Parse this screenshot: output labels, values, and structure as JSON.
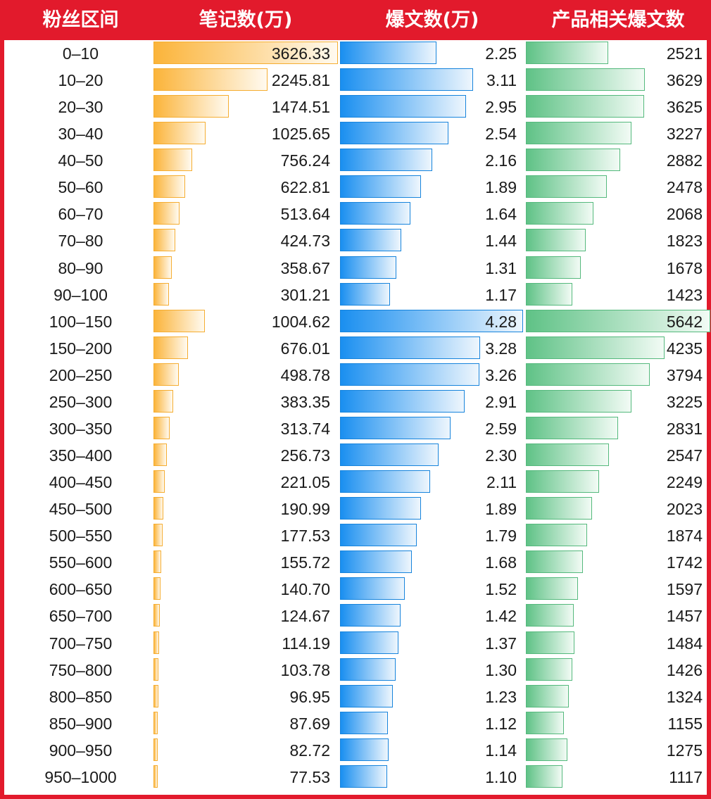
{
  "chart_data": {
    "type": "table",
    "columns": [
      "粉丝区间",
      "笔记数(万)",
      "爆文数(万)",
      "产品相关爆文数"
    ],
    "categories": [
      "0–10",
      "10–20",
      "20–30",
      "30–40",
      "40–50",
      "50–60",
      "60–70",
      "70–80",
      "80–90",
      "90–100",
      "100–150",
      "150–200",
      "200–250",
      "250–300",
      "300–350",
      "350–400",
      "400–450",
      "450–500",
      "500–550",
      "550–600",
      "600–650",
      "650–700",
      "700–750",
      "750–800",
      "800–850",
      "850–900",
      "900–950",
      "950–1000"
    ],
    "series": [
      {
        "values": [
          3626.33,
          2245.81,
          1474.51,
          1025.65,
          756.24,
          622.81,
          513.64,
          424.73,
          358.67,
          301.21,
          1004.62,
          676.01,
          498.78,
          383.35,
          313.74,
          256.73,
          221.05,
          190.99,
          177.53,
          155.72,
          140.7,
          124.67,
          114.19,
          103.78,
          96.95,
          87.69,
          82.72,
          77.53
        ]
      },
      {
        "values": [
          2.25,
          3.11,
          2.95,
          2.54,
          2.16,
          1.89,
          1.64,
          1.44,
          1.31,
          1.17,
          4.28,
          3.28,
          3.26,
          2.91,
          2.59,
          2.3,
          2.11,
          1.89,
          1.79,
          1.68,
          1.52,
          1.42,
          1.37,
          1.3,
          1.23,
          1.12,
          1.14,
          1.1
        ]
      },
      {
        "values": [
          2521,
          3629,
          3625,
          3227,
          2882,
          2478,
          2068,
          1823,
          1678,
          1423,
          5642,
          4235,
          3794,
          3225,
          2831,
          2547,
          2249,
          2023,
          1874,
          1742,
          1597,
          1457,
          1484,
          1426,
          1324,
          1155,
          1275,
          1117
        ]
      }
    ],
    "display": [
      [
        "3626.33",
        "2245.81",
        "1474.51",
        "1025.65",
        "756.24",
        "622.81",
        "513.64",
        "424.73",
        "358.67",
        "301.21",
        "1004.62",
        "676.01",
        "498.78",
        "383.35",
        "313.74",
        "256.73",
        "221.05",
        "190.99",
        "177.53",
        "155.72",
        "140.70",
        "124.67",
        "114.19",
        "103.78",
        "96.95",
        "87.69",
        "82.72",
        "77.53"
      ],
      [
        "2.25",
        "3.11",
        "2.95",
        "2.54",
        "2.16",
        "1.89",
        "1.64",
        "1.44",
        "1.31",
        "1.17",
        "4.28",
        "3.28",
        "3.26",
        "2.91",
        "2.59",
        "2.30",
        "2.11",
        "1.89",
        "1.79",
        "1.68",
        "1.52",
        "1.42",
        "1.37",
        "1.30",
        "1.23",
        "1.12",
        "1.14",
        "1.10"
      ],
      [
        "2521",
        "3629",
        "3625",
        "3227",
        "2882",
        "2478",
        "2068",
        "1823",
        "1678",
        "1423",
        "5642",
        "4235",
        "3794",
        "3225",
        "2831",
        "2547",
        "2249",
        "2023",
        "1874",
        "1742",
        "1597",
        "1457",
        "1484",
        "1426",
        "1324",
        "1155",
        "1275",
        "1117"
      ]
    ],
    "colors": {
      "header": "#e21a2c",
      "orange": "#fbb43a",
      "blue": "#1a8ff0",
      "green": "#5fc286"
    }
  }
}
